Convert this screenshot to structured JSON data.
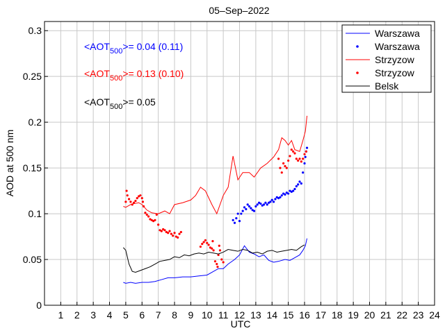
{
  "chart_data": {
    "type": "line",
    "title": "05–Sep–2022",
    "xlabel": "UTC",
    "ylabel": "AOD at 500 nm",
    "xlim": [
      0,
      24
    ],
    "ylim": [
      0,
      0.31
    ],
    "xticks": [
      "1",
      "2",
      "3",
      "4",
      "5",
      "6",
      "7",
      "8",
      "9",
      "10",
      "11",
      "12",
      "13",
      "14",
      "15",
      "16",
      "17",
      "18",
      "19",
      "20",
      "21",
      "22",
      "23",
      "24"
    ],
    "yticks": [
      "0",
      "0.05",
      "0.1",
      "0.15",
      "0.2",
      "0.25",
      "0.3"
    ],
    "grid": true,
    "legend_position": "top-right",
    "annotations": [
      {
        "prefix": "<AOT",
        "sub": "500",
        "suffix": ">= 0.04 (0.11)",
        "color": "#0000ff"
      },
      {
        "prefix": "<AOT",
        "sub": "500",
        "suffix": ">= 0.13 (0.10)",
        "color": "#ff0000"
      },
      {
        "prefix": "<AOT",
        "sub": "500",
        "suffix": ">= 0.05",
        "color": "#000000"
      }
    ],
    "series": [
      {
        "name": "Warszawa",
        "style": "line",
        "color": "#0000ff",
        "points": [
          [
            4.85,
            0.025
          ],
          [
            5.0,
            0.024
          ],
          [
            5.3,
            0.025
          ],
          [
            5.6,
            0.024
          ],
          [
            6.0,
            0.025
          ],
          [
            6.4,
            0.025
          ],
          [
            6.8,
            0.026
          ],
          [
            7.2,
            0.028
          ],
          [
            7.6,
            0.03
          ],
          [
            8.0,
            0.03
          ],
          [
            8.5,
            0.031
          ],
          [
            9.0,
            0.031
          ],
          [
            9.5,
            0.032
          ],
          [
            10.0,
            0.033
          ],
          [
            10.4,
            0.037
          ],
          [
            10.7,
            0.04
          ],
          [
            11.0,
            0.04
          ],
          [
            11.3,
            0.045
          ],
          [
            11.7,
            0.05
          ],
          [
            12.0,
            0.055
          ],
          [
            12.3,
            0.065
          ],
          [
            12.6,
            0.058
          ],
          [
            12.9,
            0.056
          ],
          [
            13.2,
            0.053
          ],
          [
            13.5,
            0.055
          ],
          [
            13.8,
            0.049
          ],
          [
            14.1,
            0.047
          ],
          [
            14.4,
            0.048
          ],
          [
            14.8,
            0.05
          ],
          [
            15.1,
            0.049
          ],
          [
            15.4,
            0.052
          ],
          [
            15.7,
            0.055
          ],
          [
            15.9,
            0.06
          ],
          [
            16.05,
            0.065
          ],
          [
            16.15,
            0.073
          ]
        ]
      },
      {
        "name": "Warszawa",
        "style": "dots",
        "color": "#0000ff",
        "points": [
          [
            11.6,
            0.093
          ],
          [
            11.7,
            0.09
          ],
          [
            11.8,
            0.095
          ],
          [
            11.9,
            0.1
          ],
          [
            12.0,
            0.092
          ],
          [
            12.1,
            0.1
          ],
          [
            12.2,
            0.103
          ],
          [
            12.3,
            0.107
          ],
          [
            12.4,
            0.105
          ],
          [
            12.5,
            0.11
          ],
          [
            12.6,
            0.108
          ],
          [
            12.7,
            0.106
          ],
          [
            12.8,
            0.104
          ],
          [
            12.9,
            0.103
          ],
          [
            13.0,
            0.108
          ],
          [
            13.1,
            0.11
          ],
          [
            13.2,
            0.112
          ],
          [
            13.3,
            0.111
          ],
          [
            13.4,
            0.109
          ],
          [
            13.5,
            0.11
          ],
          [
            13.6,
            0.112
          ],
          [
            13.7,
            0.11
          ],
          [
            13.8,
            0.112
          ],
          [
            13.9,
            0.113
          ],
          [
            14.0,
            0.115
          ],
          [
            14.1,
            0.113
          ],
          [
            14.2,
            0.116
          ],
          [
            14.3,
            0.118
          ],
          [
            14.4,
            0.117
          ],
          [
            14.5,
            0.118
          ],
          [
            14.6,
            0.12
          ],
          [
            14.7,
            0.122
          ],
          [
            14.8,
            0.121
          ],
          [
            14.9,
            0.123
          ],
          [
            15.0,
            0.122
          ],
          [
            15.1,
            0.125
          ],
          [
            15.2,
            0.124
          ],
          [
            15.3,
            0.125
          ],
          [
            15.4,
            0.127
          ],
          [
            15.5,
            0.13
          ],
          [
            15.6,
            0.132
          ],
          [
            15.7,
            0.135
          ],
          [
            15.8,
            0.133
          ],
          [
            15.9,
            0.145
          ],
          [
            16.0,
            0.155
          ],
          [
            16.05,
            0.162
          ],
          [
            16.1,
            0.168
          ],
          [
            16.15,
            0.172
          ]
        ]
      },
      {
        "name": "Strzyzow",
        "style": "line",
        "color": "#ff0000",
        "points": [
          [
            4.85,
            0.108
          ],
          [
            5.0,
            0.107
          ],
          [
            5.3,
            0.11
          ],
          [
            5.5,
            0.111
          ],
          [
            5.8,
            0.112
          ],
          [
            6.0,
            0.11
          ],
          [
            6.3,
            0.104
          ],
          [
            6.6,
            0.101
          ],
          [
            7.0,
            0.1
          ],
          [
            7.4,
            0.103
          ],
          [
            7.7,
            0.1
          ],
          [
            8.0,
            0.11
          ],
          [
            8.5,
            0.112
          ],
          [
            9.0,
            0.115
          ],
          [
            9.3,
            0.12
          ],
          [
            9.6,
            0.129
          ],
          [
            9.9,
            0.125
          ],
          [
            10.3,
            0.11
          ],
          [
            10.6,
            0.1
          ],
          [
            11.0,
            0.12
          ],
          [
            11.3,
            0.129
          ],
          [
            11.6,
            0.163
          ],
          [
            11.9,
            0.137
          ],
          [
            12.2,
            0.145
          ],
          [
            12.6,
            0.145
          ],
          [
            12.9,
            0.14
          ],
          [
            13.3,
            0.15
          ],
          [
            13.7,
            0.155
          ],
          [
            14.1,
            0.162
          ],
          [
            14.4,
            0.17
          ],
          [
            14.6,
            0.183
          ],
          [
            14.8,
            0.18
          ],
          [
            15.0,
            0.175
          ],
          [
            15.2,
            0.18
          ],
          [
            15.4,
            0.17
          ],
          [
            15.7,
            0.168
          ],
          [
            15.9,
            0.18
          ],
          [
            16.05,
            0.19
          ],
          [
            16.15,
            0.207
          ]
        ]
      },
      {
        "name": "Strzyzow",
        "style": "dots",
        "color": "#ff0000",
        "points": [
          [
            5.0,
            0.113
          ],
          [
            5.05,
            0.125
          ],
          [
            5.1,
            0.12
          ],
          [
            5.2,
            0.116
          ],
          [
            5.3,
            0.113
          ],
          [
            5.4,
            0.11
          ],
          [
            5.5,
            0.112
          ],
          [
            5.6,
            0.114
          ],
          [
            5.7,
            0.117
          ],
          [
            5.8,
            0.119
          ],
          [
            5.9,
            0.12
          ],
          [
            6.0,
            0.117
          ],
          [
            6.05,
            0.113
          ],
          [
            6.1,
            0.108
          ],
          [
            6.2,
            0.101
          ],
          [
            6.3,
            0.099
          ],
          [
            6.4,
            0.097
          ],
          [
            6.5,
            0.094
          ],
          [
            6.6,
            0.093
          ],
          [
            6.7,
            0.092
          ],
          [
            6.8,
            0.093
          ],
          [
            6.9,
            0.099
          ],
          [
            7.0,
            0.088
          ],
          [
            7.1,
            0.082
          ],
          [
            7.2,
            0.081
          ],
          [
            7.3,
            0.083
          ],
          [
            7.4,
            0.082
          ],
          [
            7.5,
            0.08
          ],
          [
            7.6,
            0.079
          ],
          [
            7.7,
            0.081
          ],
          [
            7.8,
            0.078
          ],
          [
            7.9,
            0.076
          ],
          [
            8.0,
            0.079
          ],
          [
            8.1,
            0.075
          ],
          [
            8.2,
            0.074
          ],
          [
            8.3,
            0.078
          ],
          [
            8.4,
            0.08
          ],
          [
            9.6,
            0.064
          ],
          [
            9.7,
            0.067
          ],
          [
            9.8,
            0.069
          ],
          [
            9.9,
            0.071
          ],
          [
            10.0,
            0.068
          ],
          [
            10.1,
            0.066
          ],
          [
            10.2,
            0.063
          ],
          [
            10.3,
            0.062
          ],
          [
            10.35,
            0.07
          ],
          [
            10.4,
            0.06
          ],
          [
            10.5,
            0.048
          ],
          [
            10.6,
            0.045
          ],
          [
            10.65,
            0.042
          ],
          [
            10.7,
            0.055
          ],
          [
            10.75,
            0.065
          ],
          [
            10.8,
            0.06
          ],
          [
            10.9,
            0.05
          ],
          [
            11.0,
            0.047
          ],
          [
            14.4,
            0.16
          ],
          [
            14.5,
            0.15
          ],
          [
            14.6,
            0.145
          ],
          [
            14.7,
            0.155
          ],
          [
            14.8,
            0.152
          ],
          [
            14.9,
            0.15
          ],
          [
            15.0,
            0.158
          ],
          [
            15.1,
            0.163
          ],
          [
            15.2,
            0.17
          ],
          [
            15.3,
            0.168
          ],
          [
            15.4,
            0.166
          ],
          [
            15.5,
            0.16
          ],
          [
            15.6,
            0.158
          ],
          [
            15.7,
            0.16
          ],
          [
            15.8,
            0.157
          ],
          [
            15.9,
            0.16
          ],
          [
            16.0,
            0.165
          ],
          [
            16.1,
            0.168
          ]
        ]
      },
      {
        "name": "Belsk",
        "style": "line",
        "color": "#000000",
        "points": [
          [
            4.85,
            0.063
          ],
          [
            5.0,
            0.06
          ],
          [
            5.2,
            0.045
          ],
          [
            5.4,
            0.037
          ],
          [
            5.6,
            0.036
          ],
          [
            5.9,
            0.038
          ],
          [
            6.2,
            0.04
          ],
          [
            6.5,
            0.042
          ],
          [
            6.8,
            0.045
          ],
          [
            7.1,
            0.048
          ],
          [
            7.4,
            0.049
          ],
          [
            7.7,
            0.05
          ],
          [
            8.0,
            0.053
          ],
          [
            8.3,
            0.052
          ],
          [
            8.6,
            0.055
          ],
          [
            8.9,
            0.054
          ],
          [
            9.2,
            0.056
          ],
          [
            9.5,
            0.057
          ],
          [
            9.8,
            0.056
          ],
          [
            10.1,
            0.058
          ],
          [
            10.4,
            0.057
          ],
          [
            10.7,
            0.056
          ],
          [
            11.0,
            0.058
          ],
          [
            11.3,
            0.061
          ],
          [
            11.6,
            0.06
          ],
          [
            11.9,
            0.059
          ],
          [
            12.2,
            0.061
          ],
          [
            12.5,
            0.06
          ],
          [
            12.8,
            0.057
          ],
          [
            13.1,
            0.058
          ],
          [
            13.4,
            0.056
          ],
          [
            13.7,
            0.059
          ],
          [
            14.0,
            0.06
          ],
          [
            14.3,
            0.058
          ],
          [
            14.6,
            0.059
          ],
          [
            14.9,
            0.06
          ],
          [
            15.2,
            0.061
          ],
          [
            15.5,
            0.06
          ],
          [
            15.8,
            0.064
          ],
          [
            16.0,
            0.066
          ]
        ]
      }
    ]
  }
}
